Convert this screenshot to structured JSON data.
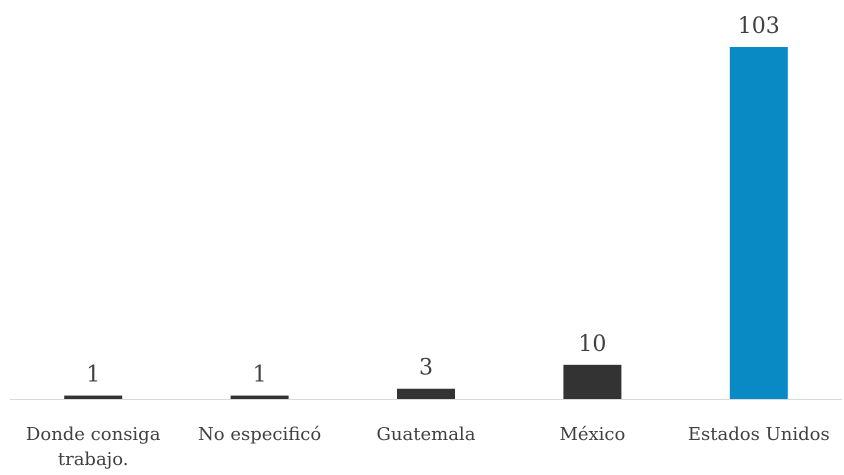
{
  "chart_data": {
    "type": "bar",
    "categories": [
      [
        "Donde consiga",
        "trabajo."
      ],
      [
        "No especificó"
      ],
      [
        "Guatemala"
      ],
      [
        "México"
      ],
      [
        "Estados Unidos"
      ]
    ],
    "values": [
      1,
      1,
      3,
      10,
      103
    ],
    "data_labels": [
      "1",
      "1",
      "3",
      "10",
      "103"
    ],
    "bar_colors": [
      "#333333",
      "#333333",
      "#333333",
      "#333333",
      "#0A8AC4"
    ],
    "axis_color": "#D9D9D9",
    "ylim": [
      0,
      103
    ],
    "title": "",
    "xlabel": "",
    "ylabel": "",
    "grid": false,
    "legend": "none"
  }
}
